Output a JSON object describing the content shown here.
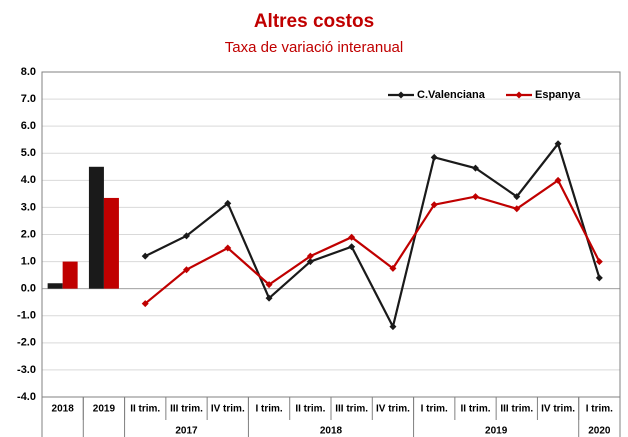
{
  "chart_data": [
    {
      "type": "bar",
      "title": "Altres costos",
      "subtitle": "Taxa de variació interanual",
      "categories": [
        "2018",
        "2019"
      ],
      "series": [
        {
          "color": "#1a1a1a",
          "values": [
            0.2,
            4.5
          ]
        },
        {
          "color": "#c00000",
          "values": [
            1.0,
            3.35
          ]
        }
      ],
      "ylim": [
        -4,
        8
      ],
      "yticks": [
        {
          "value": 8,
          "label": "8.0"
        },
        {
          "value": 7,
          "label": "7.0"
        },
        {
          "value": 6,
          "label": "6.0"
        },
        {
          "value": 5,
          "label": "5.0"
        },
        {
          "value": 4,
          "label": "4.0"
        },
        {
          "value": 3,
          "label": "3.0"
        },
        {
          "value": 2,
          "label": "2.0"
        },
        {
          "value": 1,
          "label": "1.0"
        },
        {
          "value": 0,
          "label": "0.0"
        },
        {
          "value": -1,
          "label": "-1.0"
        },
        {
          "value": -2,
          "label": "-2.0"
        },
        {
          "value": -3,
          "label": "-3.0"
        },
        {
          "value": -4,
          "label": "-4.0"
        }
      ],
      "grid": true
    },
    {
      "type": "line",
      "groups": [
        {
          "label": "2017",
          "categories": [
            "II trim.",
            "III trim.",
            "IV trim."
          ]
        },
        {
          "label": "2018",
          "categories": [
            "I trim.",
            "II trim.",
            "III trim.",
            "IV trim."
          ]
        },
        {
          "label": "2019",
          "categories": [
            "I trim.",
            "II trim.",
            "III trim.",
            "IV trim."
          ]
        },
        {
          "label": "2020",
          "categories": [
            "I trim."
          ]
        }
      ],
      "series": [
        {
          "name": "C.Valenciana",
          "color": "#1a1a1a",
          "values": [
            1.2,
            1.95,
            3.15,
            -0.35,
            1.0,
            1.55,
            -1.4,
            4.85,
            4.45,
            3.4,
            5.35,
            0.4
          ]
        },
        {
          "name": "Espanya",
          "color": "#c00000",
          "values": [
            -0.55,
            0.7,
            1.5,
            0.15,
            1.2,
            1.9,
            0.75,
            3.1,
            3.4,
            2.95,
            4.0,
            1.0
          ]
        }
      ],
      "legend": "upper right"
    }
  ]
}
